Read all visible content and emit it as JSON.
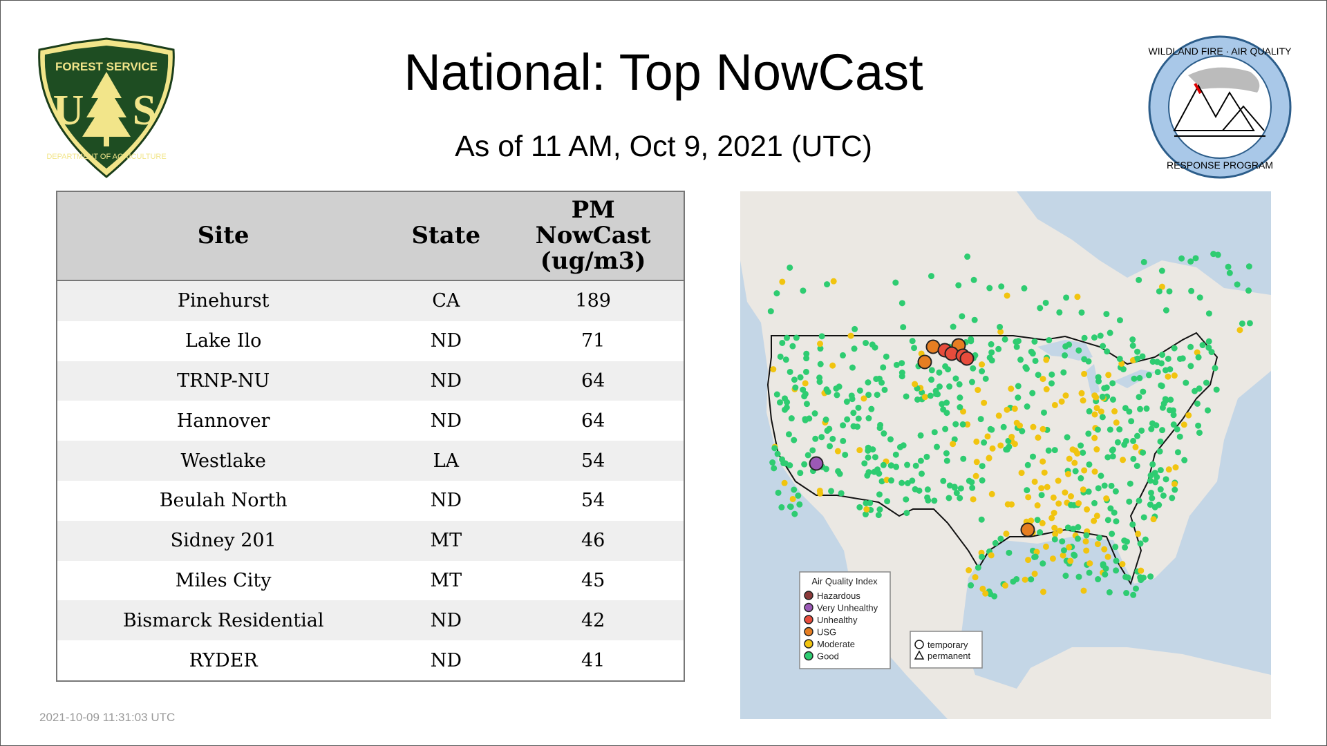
{
  "header": {
    "title": "National: Top NowCast",
    "subtitle": "As of 11 AM, Oct  9, 2021 (UTC)"
  },
  "logos": {
    "left": "Forest Service U.S. Department of Agriculture",
    "right": "Wildland Fire Air Quality Response Program"
  },
  "table": {
    "columns": [
      "Site",
      "State",
      "PM NowCast (ug/m3)"
    ],
    "rows": [
      [
        "Pinehurst",
        "CA",
        "189"
      ],
      [
        "Lake Ilo",
        "ND",
        "71"
      ],
      [
        "TRNP-NU",
        "ND",
        "64"
      ],
      [
        "Hannover",
        "ND",
        "64"
      ],
      [
        "Westlake",
        "LA",
        "54"
      ],
      [
        "Beulah North",
        "ND",
        "54"
      ],
      [
        "Sidney 201",
        "MT",
        "46"
      ],
      [
        "Miles City",
        "MT",
        "45"
      ],
      [
        "Bismarck Residential",
        "ND",
        "42"
      ],
      [
        "RYDER",
        "ND",
        "41"
      ]
    ]
  },
  "map": {
    "legend": {
      "title": "Air Quality Index",
      "items": [
        {
          "label": "Hazardous",
          "color": "#8b3a3a"
        },
        {
          "label": "Very Unhealthy",
          "color": "#9b59b6"
        },
        {
          "label": "Unhealthy",
          "color": "#e74c3c"
        },
        {
          "label": "USG",
          "color": "#e67e22"
        },
        {
          "label": "Moderate",
          "color": "#f1c40f"
        },
        {
          "label": "Good",
          "color": "#2ecc71"
        }
      ]
    },
    "shape_legend": {
      "items": [
        {
          "label": "temporary",
          "shape": "circle"
        },
        {
          "label": "permanent",
          "shape": "triangle"
        }
      ]
    }
  },
  "footer": {
    "timestamp": "2021-10-09 11:31:03 UTC"
  }
}
